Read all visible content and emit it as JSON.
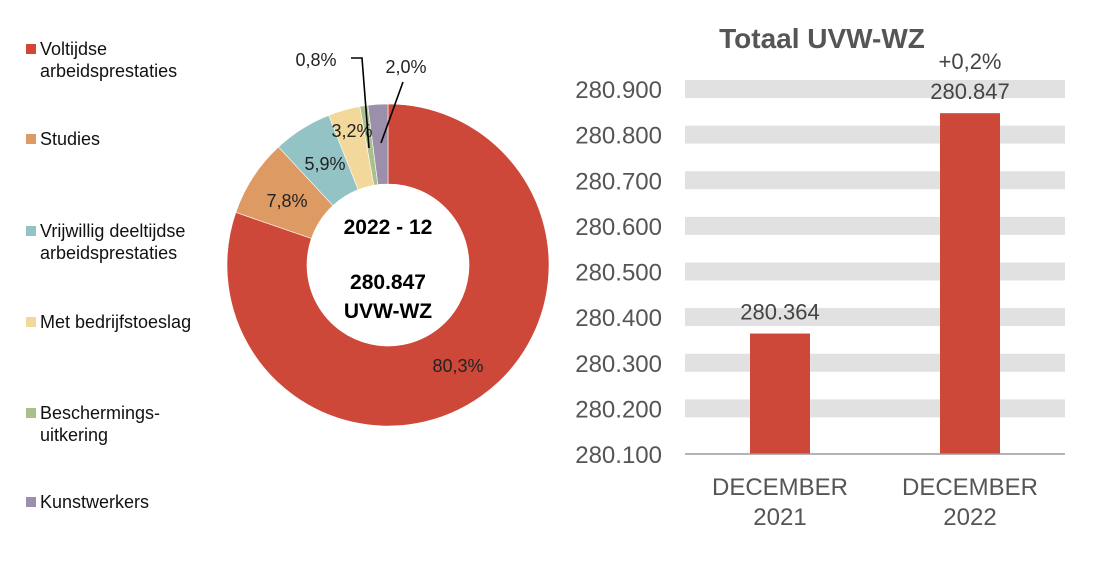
{
  "chart_data": [
    {
      "type": "pie",
      "variant": "donut",
      "center_title": "2022 - 12",
      "center_value": "280.847",
      "center_unit": "UVW-WZ",
      "start": "top",
      "direction": "clockwise",
      "slices": [
        {
          "label": "Voltijdse\narbeidsprestaties",
          "value": 80.3,
          "display": "80,3%",
          "color": "#CD4839"
        },
        {
          "label": "Studies",
          "value": 7.8,
          "display": "7,8%",
          "color": "#DE9A63"
        },
        {
          "label": "Vrijwillig deeltijdse\narbeidsprestaties",
          "value": 5.9,
          "display": "5,9%",
          "color": "#93C3C5"
        },
        {
          "label": "Met bedrijfstoeslag",
          "value": 3.2,
          "display": "3,2%",
          "color": "#F2D89A"
        },
        {
          "label": "Beschermings-\nuitkering",
          "value": 0.8,
          "display": "0,8%",
          "color": "#A9C08A"
        },
        {
          "label": "Kunstwerkers",
          "value": 2.0,
          "display": "2,0%",
          "color": "#9B8FAB"
        }
      ],
      "legend_position": "left"
    },
    {
      "type": "bar",
      "title": "Totaal UVW-WZ",
      "categories": [
        "DECEMBER\n2021",
        "DECEMBER\n2022"
      ],
      "values": [
        280364,
        280847
      ],
      "value_labels": [
        "280.364",
        "280.847"
      ],
      "change_label": "+0,2%",
      "bar_color": "#CD4839",
      "ylim": [
        280100,
        280900
      ],
      "yticks": [
        280100,
        280200,
        280300,
        280400,
        280500,
        280600,
        280700,
        280800,
        280900
      ],
      "ytick_labels": [
        "280.100",
        "280.200",
        "280.300",
        "280.400",
        "280.500",
        "280.600",
        "280.700",
        "280.800",
        "280.900"
      ],
      "grid": "banded",
      "xlabel": "",
      "ylabel": ""
    }
  ]
}
